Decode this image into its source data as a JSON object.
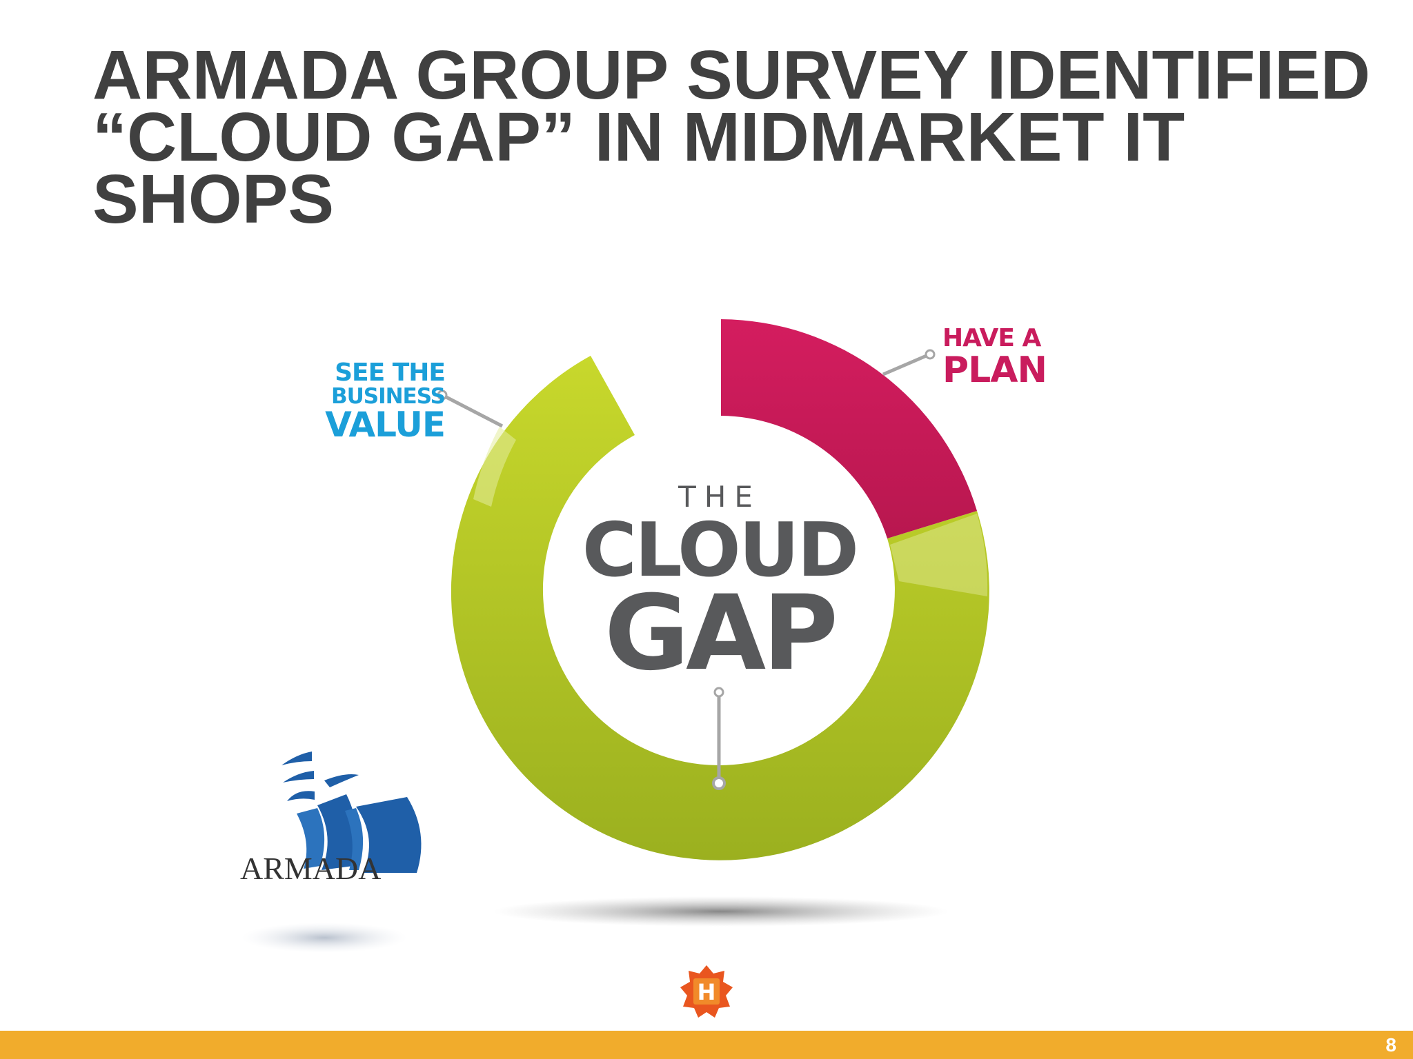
{
  "slide": {
    "title_lines": [
      "ARMADA GROUP SURVEY IDENTIFIED",
      "“CLOUD GAP” IN MIDMARKET IT",
      "SHOPS"
    ],
    "page_number": "8"
  },
  "graphic": {
    "see_value_lines": [
      "SEE THE",
      "BUSINESS",
      "VALUE"
    ],
    "have_plan_lines": [
      "HAVE A",
      "PLAN"
    ],
    "center_the": "THE",
    "center_cloud": "CLOUD",
    "center_gap": "GAP",
    "colors": {
      "green": "#a8c023",
      "pink": "#c91c5d",
      "blue": "#1b9fd9",
      "center_gray": "#58595b"
    }
  },
  "logo": {
    "name": "ARMADA",
    "colors": {
      "blue": "#1f5fa8"
    }
  },
  "footer": {
    "bar_color": "#f1ac2c",
    "logo_letter": "H",
    "logo_color": "#e9561f"
  }
}
